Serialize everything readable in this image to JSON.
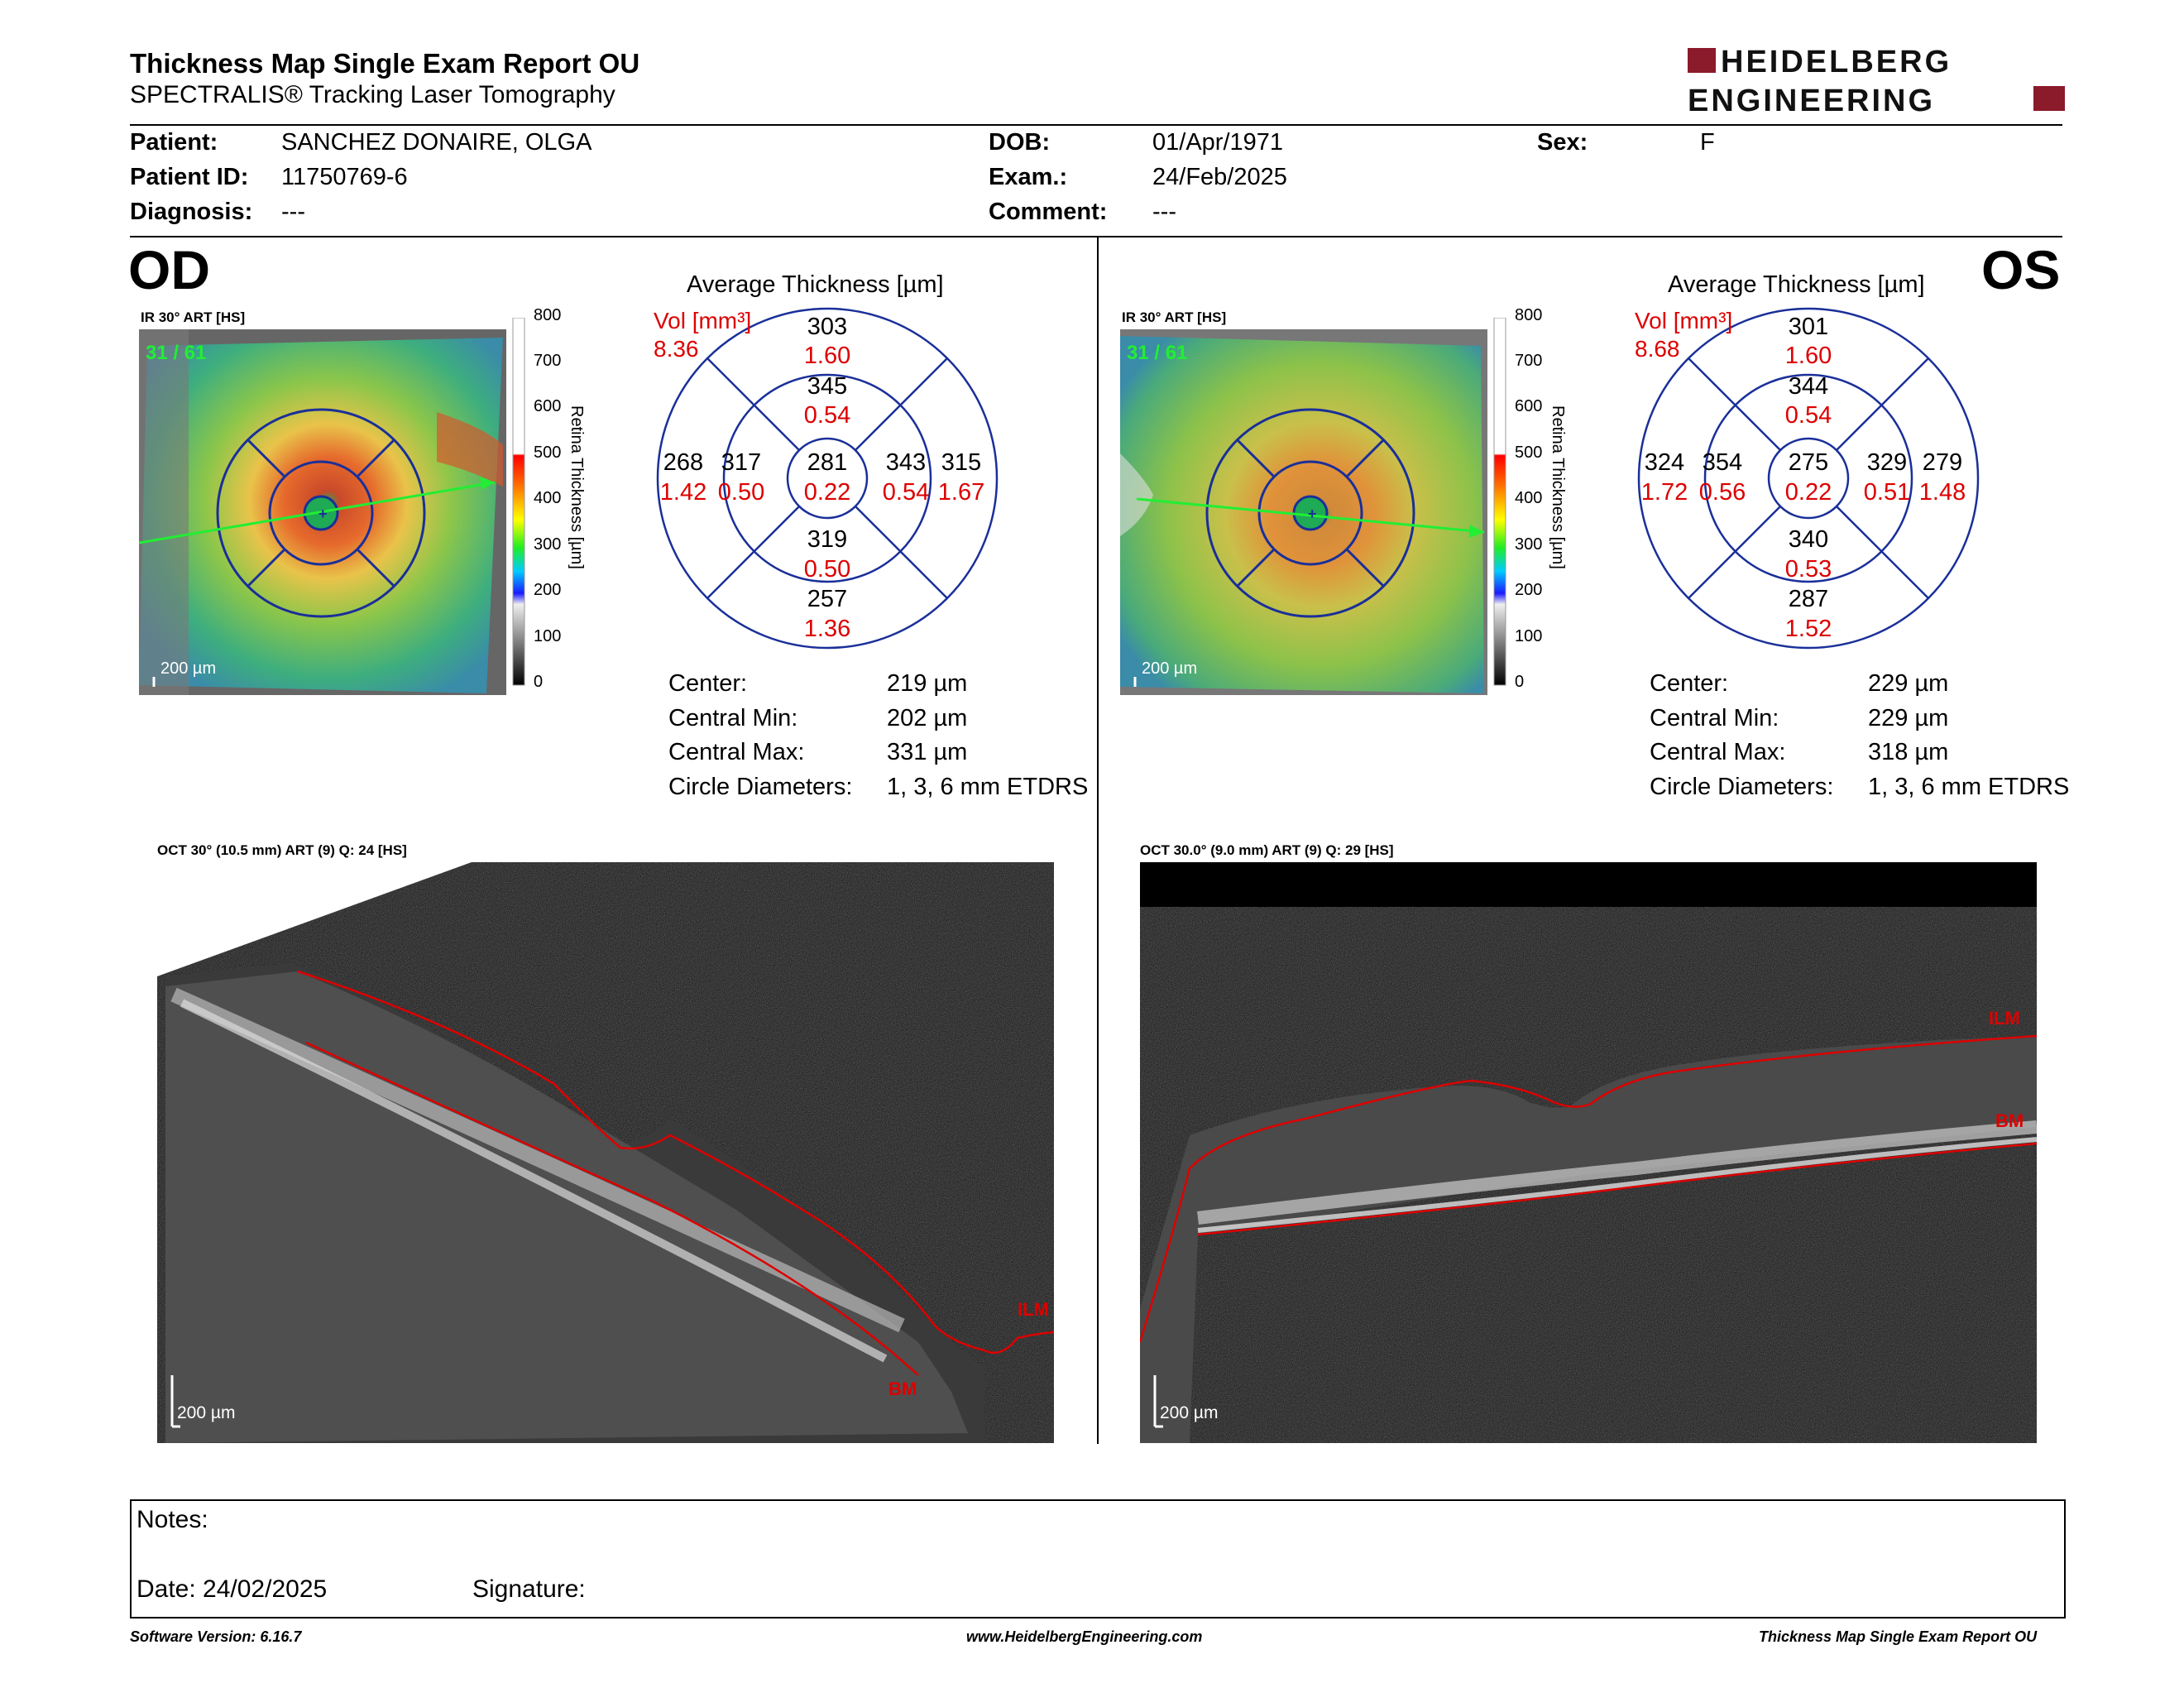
{
  "header": {
    "title": "Thickness Map Single Exam Report OU",
    "subtitle": "SPECTRALIS® Tracking Laser Tomography",
    "logo_line1": "HEIDELBERG",
    "logo_line2": "ENGINEERING"
  },
  "patient": {
    "patient_label": "Patient:",
    "patient_value": "SANCHEZ DONAIRE, OLGA",
    "id_label": "Patient ID:",
    "id_value": "11750769-6",
    "diag_label": "Diagnosis:",
    "diag_value": "---",
    "dob_label": "DOB:",
    "dob_value": "01/Apr/1971",
    "exam_label": "Exam.:",
    "exam_value": "24/Feb/2025",
    "comment_label": "Comment:",
    "comment_value": "---",
    "sex_label": "Sex:",
    "sex_value": "F"
  },
  "scale": {
    "ticks": [
      "800",
      "700",
      "600",
      "500",
      "400",
      "300",
      "200",
      "100",
      "0"
    ],
    "label": "Retina Thickness [µm]"
  },
  "od": {
    "eye": "OD",
    "ir_label": "IR 30° ART [HS]",
    "frame": "31 / 61",
    "scalebar": "200 µm",
    "avg_title": "Average Thickness [µm]",
    "vol_label": "Vol [mm³]",
    "vol_value": "8.36",
    "grid": {
      "sup_outer": "303",
      "sup_outer_vol": "1.60",
      "sup_inner": "345",
      "sup_inner_vol": "0.54",
      "temp_outer": "268",
      "temp_outer_vol": "1.42",
      "temp_inner": "317",
      "temp_inner_vol": "0.50",
      "center": "281",
      "center_vol": "0.22",
      "nasal_inner": "343",
      "nasal_inner_vol": "0.54",
      "nasal_outer": "315",
      "nasal_outer_vol": "1.67",
      "inf_inner": "319",
      "inf_inner_vol": "0.50",
      "inf_outer": "257",
      "inf_outer_vol": "1.36"
    },
    "stats": {
      "center_label": "Center:",
      "center_value": "219 µm",
      "min_label": "Central Min:",
      "min_value": "202 µm",
      "max_label": "Central Max:",
      "max_value": "331 µm",
      "diam_label": "Circle Diameters:",
      "diam_value": "1, 3, 6 mm ETDRS"
    },
    "oct_label": "OCT 30° (10.5 mm) ART (9) Q: 24 [HS]",
    "oct_scalebar": "200 µm",
    "ilm": "ILM",
    "bm": "BM"
  },
  "os": {
    "eye": "OS",
    "ir_label": "IR 30° ART [HS]",
    "frame": "31 / 61",
    "scalebar": "200 µm",
    "avg_title": "Average Thickness [µm]",
    "vol_label": "Vol [mm³]",
    "vol_value": "8.68",
    "grid": {
      "sup_outer": "301",
      "sup_outer_vol": "1.60",
      "sup_inner": "344",
      "sup_inner_vol": "0.54",
      "temp_outer": "324",
      "temp_outer_vol": "1.72",
      "temp_inner": "354",
      "temp_inner_vol": "0.56",
      "center": "275",
      "center_vol": "0.22",
      "nasal_inner": "329",
      "nasal_inner_vol": "0.51",
      "nasal_outer": "279",
      "nasal_outer_vol": "1.48",
      "inf_inner": "340",
      "inf_inner_vol": "0.53",
      "inf_outer": "287",
      "inf_outer_vol": "1.52"
    },
    "stats": {
      "center_label": "Center:",
      "center_value": "229 µm",
      "min_label": "Central Min:",
      "min_value": "229 µm",
      "max_label": "Central Max:",
      "max_value": "318 µm",
      "diam_label": "Circle Diameters:",
      "diam_value": "1, 3, 6 mm ETDRS"
    },
    "oct_label": "OCT 30.0° (9.0 mm) ART (9) Q: 29 [HS]",
    "oct_scalebar": "200 µm",
    "ilm": "ILM",
    "bm": "BM"
  },
  "notes": {
    "notes_label": "Notes:",
    "date_label": "Date: 24/02/2025",
    "signature_label": "Signature:"
  },
  "footer": {
    "software": "Software Version: 6.16.7",
    "url": "www.HeidelbergEngineering.com",
    "report": "Thickness Map Single Exam Report OU"
  }
}
